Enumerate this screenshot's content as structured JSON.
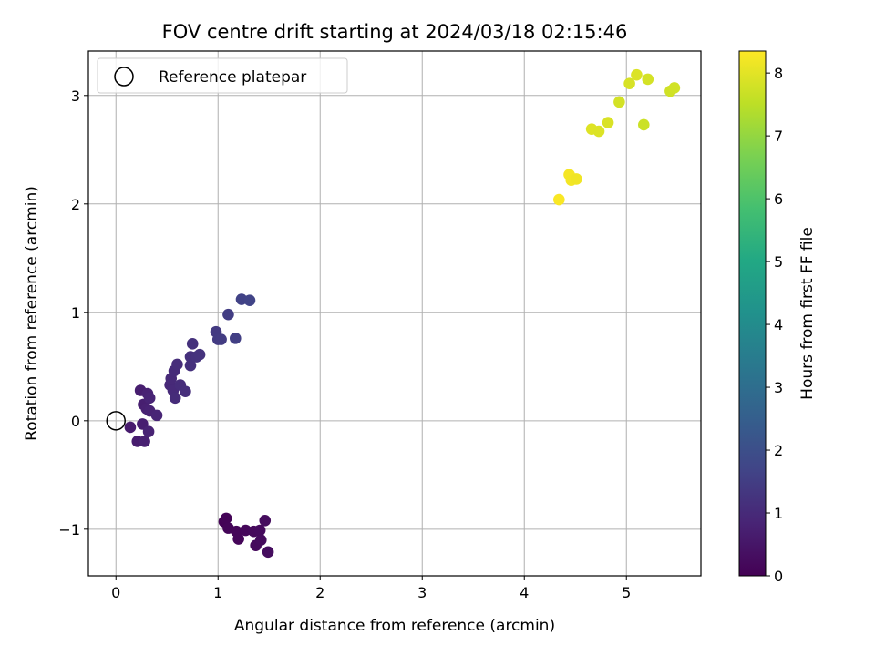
{
  "chart_data": {
    "type": "scatter",
    "title": "FOV centre drift starting at 2024/03/18 02:15:46",
    "xlabel": "Angular distance from reference (arcmin)",
    "ylabel": "Rotation from reference (arcmin)",
    "xlim": [
      -0.27,
      5.73
    ],
    "ylim": [
      -1.43,
      3.41
    ],
    "xticks": [
      0,
      1,
      2,
      3,
      4,
      5
    ],
    "yticks": [
      -1,
      0,
      1,
      2,
      3
    ],
    "grid": true,
    "legend": {
      "position": "top-left",
      "label": "Reference platepar"
    },
    "reference_point": {
      "x": 0,
      "y": 0
    },
    "colorbar": {
      "label": "Hours from first FF file",
      "range": [
        0,
        8.35
      ],
      "ticks": [
        0,
        1,
        2,
        3,
        4,
        5,
        6,
        7,
        8
      ],
      "colormap": "viridis"
    },
    "points": [
      {
        "x": 1.06,
        "y": -0.93,
        "t": 0.05
      },
      {
        "x": 1.08,
        "y": -0.9,
        "t": 0.08
      },
      {
        "x": 1.1,
        "y": -0.99,
        "t": 0.1
      },
      {
        "x": 1.18,
        "y": -1.02,
        "t": 0.12
      },
      {
        "x": 1.2,
        "y": -1.09,
        "t": 0.13
      },
      {
        "x": 1.27,
        "y": -1.01,
        "t": 0.15
      },
      {
        "x": 1.35,
        "y": -1.02,
        "t": 0.18
      },
      {
        "x": 1.37,
        "y": -1.15,
        "t": 0.2
      },
      {
        "x": 1.41,
        "y": -1.01,
        "t": 0.22
      },
      {
        "x": 1.42,
        "y": -1.1,
        "t": 0.24
      },
      {
        "x": 1.46,
        "y": -0.92,
        "t": 0.26
      },
      {
        "x": 1.49,
        "y": -1.21,
        "t": 0.28
      },
      {
        "x": 0.14,
        "y": -0.06,
        "t": 0.62
      },
      {
        "x": 0.21,
        "y": -0.19,
        "t": 0.65
      },
      {
        "x": 0.24,
        "y": 0.28,
        "t": 0.68
      },
      {
        "x": 0.26,
        "y": -0.03,
        "t": 0.7
      },
      {
        "x": 0.27,
        "y": 0.15,
        "t": 0.72
      },
      {
        "x": 0.28,
        "y": -0.19,
        "t": 0.74
      },
      {
        "x": 0.3,
        "y": 0.11,
        "t": 0.76
      },
      {
        "x": 0.31,
        "y": 0.25,
        "t": 0.78
      },
      {
        "x": 0.32,
        "y": -0.1,
        "t": 0.8
      },
      {
        "x": 0.33,
        "y": 0.09,
        "t": 0.82
      },
      {
        "x": 0.33,
        "y": 0.21,
        "t": 0.84
      },
      {
        "x": 0.4,
        "y": 0.05,
        "t": 0.86
      },
      {
        "x": 0.53,
        "y": 0.33,
        "t": 0.95
      },
      {
        "x": 0.54,
        "y": 0.39,
        "t": 0.98
      },
      {
        "x": 0.56,
        "y": 0.28,
        "t": 1.0
      },
      {
        "x": 0.57,
        "y": 0.46,
        "t": 1.02
      },
      {
        "x": 0.58,
        "y": 0.21,
        "t": 1.04
      },
      {
        "x": 0.6,
        "y": 0.52,
        "t": 1.06
      },
      {
        "x": 0.63,
        "y": 0.33,
        "t": 1.08
      },
      {
        "x": 0.68,
        "y": 0.27,
        "t": 1.1
      },
      {
        "x": 0.73,
        "y": 0.51,
        "t": 1.14
      },
      {
        "x": 0.73,
        "y": 0.59,
        "t": 1.16
      },
      {
        "x": 0.75,
        "y": 0.71,
        "t": 1.18
      },
      {
        "x": 0.79,
        "y": 0.59,
        "t": 1.2
      },
      {
        "x": 0.82,
        "y": 0.61,
        "t": 1.22
      },
      {
        "x": 0.98,
        "y": 0.82,
        "t": 1.4
      },
      {
        "x": 1.0,
        "y": 0.75,
        "t": 1.43
      },
      {
        "x": 1.03,
        "y": 0.75,
        "t": 1.45
      },
      {
        "x": 1.1,
        "y": 0.98,
        "t": 1.5
      },
      {
        "x": 1.17,
        "y": 0.76,
        "t": 1.55
      },
      {
        "x": 1.23,
        "y": 1.12,
        "t": 1.62
      },
      {
        "x": 1.31,
        "y": 1.11,
        "t": 1.66
      },
      {
        "x": 4.34,
        "y": 2.04,
        "t": 8.3
      },
      {
        "x": 4.44,
        "y": 2.27,
        "t": 8.25
      },
      {
        "x": 4.46,
        "y": 2.22,
        "t": 8.22
      },
      {
        "x": 4.51,
        "y": 2.23,
        "t": 8.18
      },
      {
        "x": 4.66,
        "y": 2.69,
        "t": 7.95
      },
      {
        "x": 4.73,
        "y": 2.67,
        "t": 7.92
      },
      {
        "x": 4.82,
        "y": 2.75,
        "t": 7.88
      },
      {
        "x": 4.93,
        "y": 2.94,
        "t": 7.8
      },
      {
        "x": 5.03,
        "y": 3.11,
        "t": 7.85
      },
      {
        "x": 5.1,
        "y": 3.19,
        "t": 7.9
      },
      {
        "x": 5.17,
        "y": 2.73,
        "t": 7.7
      },
      {
        "x": 5.21,
        "y": 3.15,
        "t": 7.82
      },
      {
        "x": 5.43,
        "y": 3.04,
        "t": 7.75
      },
      {
        "x": 5.47,
        "y": 3.07,
        "t": 7.78
      }
    ]
  }
}
